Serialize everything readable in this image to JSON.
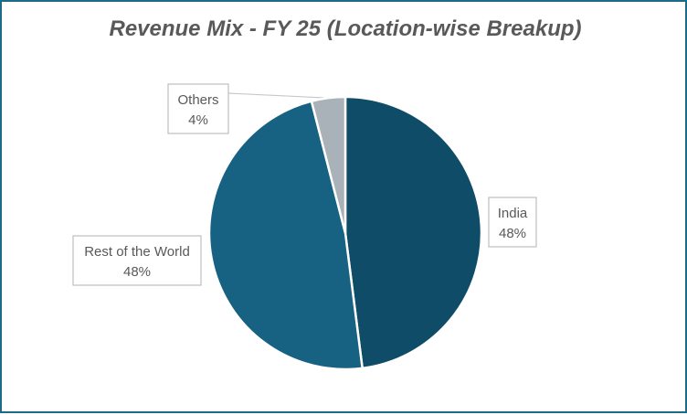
{
  "chart_data": {
    "type": "pie",
    "title": "Revenue Mix - FY 25 (Location-wise Breakup)",
    "slices": [
      {
        "label": "India",
        "value": 48,
        "value_label": "48%",
        "color": "#0f4c68"
      },
      {
        "label": "Rest of the World",
        "value": 48,
        "value_label": "48%",
        "color": "#176283"
      },
      {
        "label": "Others",
        "value": 4,
        "value_label": "4%",
        "color": "#a9b2b9"
      }
    ]
  }
}
